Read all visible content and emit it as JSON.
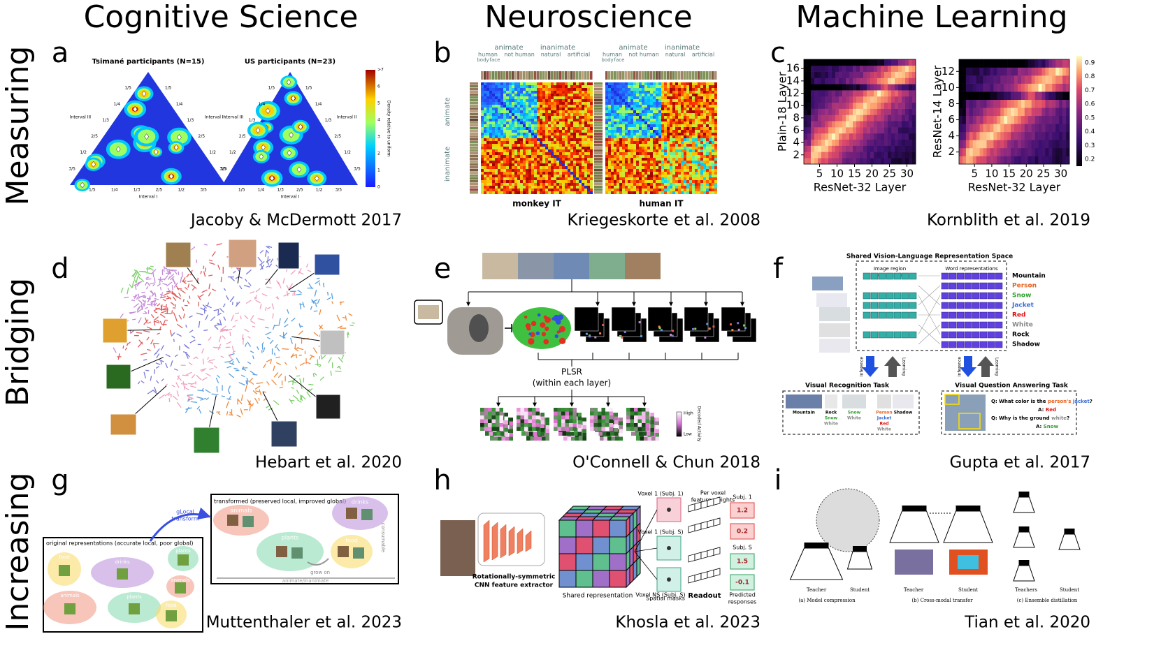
{
  "columns": [
    "Cognitive Science",
    "Neuroscience",
    "Machine Learning"
  ],
  "rows": [
    "Measuring",
    "Bridging",
    "Increasing"
  ],
  "panels": {
    "a": {
      "letter": "a",
      "citation": "Jacoby & McDermott 2017",
      "titles": [
        "Tsimané participants (N=15)",
        "US participants (N=23)"
      ],
      "interval_labels": [
        "Interval I",
        "Interval II",
        "Interval III"
      ],
      "edge_ticks": [
        "1/5",
        "1/4",
        "1/3",
        "2/5",
        "1/2",
        "3/5"
      ],
      "colorbar_label": "Density relative to uniform",
      "colorbar_ticks": [
        "0",
        "1",
        "2",
        "3",
        "4",
        "5",
        "6",
        ">7"
      ]
    },
    "b": {
      "letter": "b",
      "citation": "Kriegeskorte et al. 2008",
      "matrix_labels": [
        "monkey IT",
        "human IT"
      ],
      "group_labels": [
        "animate",
        "inanimate"
      ],
      "subgroup_labels": [
        "human",
        "not human",
        "natural",
        "artificial"
      ],
      "part_labels": [
        "body",
        "face"
      ]
    },
    "c": {
      "letter": "c",
      "citation": "Kornblith et al. 2019",
      "ylabels": [
        "Plain-18 Layer",
        "ResNet-14 Layer"
      ],
      "xlabel": "ResNet-32 Layer",
      "yticks": [
        [
          2,
          4,
          6,
          8,
          10,
          12,
          14,
          16
        ],
        [
          2,
          4,
          6,
          8,
          10,
          12
        ]
      ],
      "xticks": [
        5,
        10,
        15,
        20,
        25,
        30
      ],
      "colorbar_ticks": [
        0.2,
        0.3,
        0.4,
        0.5,
        0.6,
        0.7,
        0.8,
        0.9
      ]
    },
    "d": {
      "letter": "d",
      "citation": "Hebart et al. 2020"
    },
    "e": {
      "letter": "e",
      "citation": "O'Connell & Chun 2018",
      "method": "PLSR",
      "method_note": "(within each layer)",
      "colorbar_high": "High",
      "colorbar_low": "Low",
      "colorbar_label": "Decoded Activity"
    },
    "f": {
      "letter": "f",
      "citation": "Gupta et al. 2017",
      "space_title": "Shared Vision-Language Representation Space",
      "image_column": [
        "Image region",
        "representations"
      ],
      "word_column": "Word representations",
      "words": [
        {
          "text": "Mountain",
          "color": "#000000"
        },
        {
          "text": "Person",
          "color": "#e8601c"
        },
        {
          "text": "Snow",
          "color": "#2e9e2e"
        },
        {
          "text": "Jacket",
          "color": "#3a6fd8"
        },
        {
          "text": "Red",
          "color": "#e01010"
        },
        {
          "text": "White",
          "color": "#888888"
        },
        {
          "text": "Rock",
          "color": "#000000"
        },
        {
          "text": "Shadow",
          "color": "#000000"
        }
      ],
      "inference": "Inference",
      "learning": "Learning",
      "recognition_task": "Visual Recognition Task",
      "vqa_task": "Visual Question Answering Task",
      "recognition_labels": [
        [
          {
            "text": "Mountain",
            "color": "#000000"
          }
        ],
        [
          {
            "text": "Rock",
            "color": "#000000"
          },
          {
            "text": "Snow",
            "color": "#2e9e2e"
          },
          {
            "text": "White",
            "color": "#888888"
          }
        ],
        [
          {
            "text": "Snow",
            "color": "#2e9e2e"
          },
          {
            "text": "White",
            "color": "#888888"
          }
        ],
        [
          {
            "text": "Person",
            "color": "#e8601c"
          },
          {
            "text": "Jacket",
            "color": "#3a6fd8"
          },
          {
            "text": "Red",
            "color": "#e01010"
          },
          {
            "text": "White",
            "color": "#888888"
          }
        ],
        [
          {
            "text": "Shadow",
            "color": "#000000"
          }
        ]
      ],
      "qa": [
        [
          {
            "text": "Q: What color is the ",
            "color": "#000000"
          },
          {
            "text": "person's",
            "color": "#e8601c"
          },
          {
            "text": " jacket",
            "color": "#3a6fd8"
          },
          {
            "text": "?",
            "color": "#000000"
          }
        ],
        [
          {
            "text": "A: ",
            "color": "#000000"
          },
          {
            "text": "Red",
            "color": "#e01010"
          }
        ],
        [
          {
            "text": "Q: Why is the ground ",
            "color": "#000000"
          },
          {
            "text": "white",
            "color": "#888888"
          },
          {
            "text": "?",
            "color": "#000000"
          }
        ],
        [
          {
            "text": "A: ",
            "color": "#000000"
          },
          {
            "text": "Snow",
            "color": "#2e9e2e"
          }
        ]
      ]
    },
    "g": {
      "letter": "g",
      "citation": "Muttenthaler et al. 2023",
      "transform": [
        "gLocal",
        "transform"
      ],
      "transformed_title": "transformed (preserved local, improved global)",
      "original_title": "original representations (accurate local, poor global)",
      "transformed_clusters": [
        "animals",
        "drinks",
        "plants",
        "food"
      ],
      "relations": [
        "consumable",
        "grow on",
        "animate/inanimate"
      ],
      "original_clusters": [
        "food",
        "drinks",
        "plants",
        "animals",
        "animals",
        "plants",
        "food"
      ]
    },
    "h": {
      "letter": "h",
      "citation": "Khosla et al. 2023",
      "extractor": [
        "Rotationally-symmetric",
        "CNN feature extractor"
      ],
      "shared": "Shared representation",
      "voxels": [
        "Voxel 1 (Subj. 1)",
        "Voxel 1 (Subj. S)",
        "Voxel NS (Subj. S)"
      ],
      "masks": "Spatial masks",
      "weights": [
        "Per voxel",
        "feature weights"
      ],
      "readout": "Readout",
      "subjects": [
        "Subj. 1",
        "Subj. S"
      ],
      "responses": [
        1.2,
        0.2,
        1.5,
        -0.1
      ],
      "responses_label": [
        "Predicted",
        "responses"
      ]
    },
    "i": {
      "letter": "i",
      "citation": "Tian et al. 2020",
      "teacher": "Teacher",
      "teachers": "Teachers",
      "student": "Student",
      "captions": [
        "(a) Model compression",
        "(b) Cross-modal transfer",
        "(c) Ensemble distillation"
      ]
    }
  }
}
